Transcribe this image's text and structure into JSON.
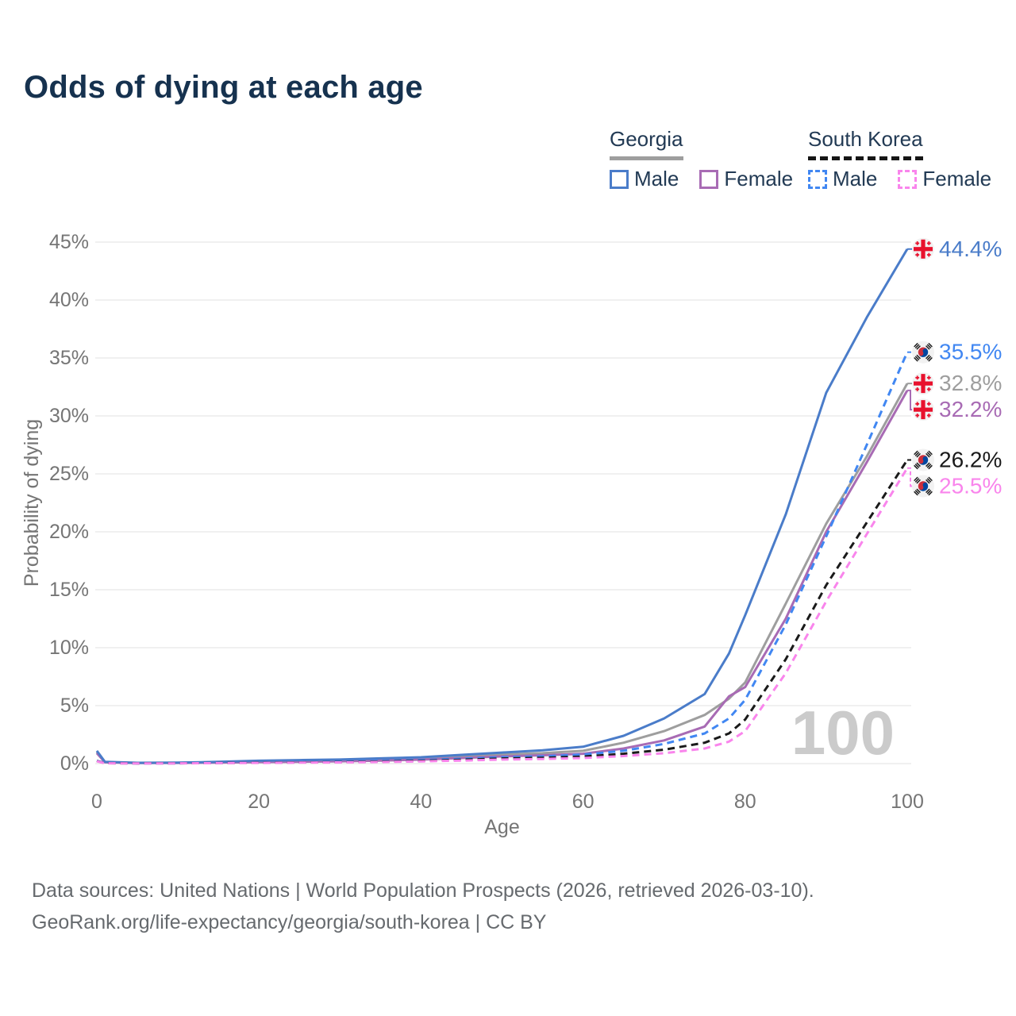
{
  "header": {
    "title": "Odds of dying at each age"
  },
  "legend": {
    "groups": [
      {
        "label": "Georgia",
        "line": {
          "style": "solid",
          "color": "#9e9e9e"
        },
        "items": [
          {
            "label": "Male",
            "color": "#4a7cc9",
            "dash": false
          },
          {
            "label": "Female",
            "color": "#a86bb4",
            "dash": false
          }
        ]
      },
      {
        "label": "South Korea",
        "line": {
          "style": "dashed",
          "color": "#161616"
        },
        "items": [
          {
            "label": "Male",
            "color": "#4187f2",
            "dash": true
          },
          {
            "label": "Female",
            "color": "#f985ec",
            "dash": true
          }
        ]
      }
    ]
  },
  "chart_data": {
    "type": "line",
    "title": "Odds of dying at each age",
    "xlabel": "Age",
    "ylabel": "Probability of dying",
    "xlim": [
      0,
      100
    ],
    "ylim": [
      0,
      45
    ],
    "xticks": [
      0,
      20,
      40,
      60,
      80,
      100
    ],
    "yticks": [
      0,
      5,
      10,
      15,
      20,
      25,
      30,
      35,
      40,
      45
    ],
    "ytick_suffix": "%",
    "grid": "horizontal",
    "legend_position": "top-right",
    "watermark": "100",
    "x": [
      0,
      1,
      5,
      10,
      15,
      20,
      25,
      30,
      35,
      40,
      45,
      50,
      55,
      60,
      65,
      70,
      75,
      78,
      80,
      85,
      90,
      95,
      100
    ],
    "series": [
      {
        "id": "georgia-male",
        "country": "Georgia",
        "flag": "georgia",
        "legend_label": "Male",
        "color": "#4a7cc9",
        "dash": false,
        "end_label": "44.4%",
        "values": [
          1.1,
          0.15,
          0.07,
          0.08,
          0.15,
          0.25,
          0.3,
          0.35,
          0.45,
          0.55,
          0.75,
          0.95,
          1.15,
          1.45,
          2.4,
          3.9,
          6.0,
          9.5,
          12.8,
          21.5,
          32.0,
          38.5,
          44.4
        ]
      },
      {
        "id": "south-korea-male",
        "country": "South Korea",
        "flag": "south-korea",
        "legend_label": "Male",
        "color": "#4187f2",
        "dash": true,
        "end_label": "35.5%",
        "values": [
          0.25,
          0.04,
          0.02,
          0.03,
          0.06,
          0.1,
          0.13,
          0.17,
          0.23,
          0.3,
          0.42,
          0.55,
          0.62,
          0.78,
          1.1,
          1.7,
          2.6,
          3.9,
          5.5,
          12.0,
          19.6,
          27.5,
          35.5
        ]
      },
      {
        "id": "georgia-combined",
        "country": "Georgia",
        "flag": "georgia",
        "legend_label": "",
        "color": "#9e9e9e",
        "dash": false,
        "end_label": "32.8%",
        "values": [
          1.0,
          0.13,
          0.06,
          0.07,
          0.12,
          0.19,
          0.23,
          0.27,
          0.34,
          0.43,
          0.6,
          0.78,
          0.9,
          1.1,
          1.8,
          2.8,
          4.2,
          5.6,
          7.0,
          13.8,
          20.7,
          26.5,
          32.8
        ]
      },
      {
        "id": "georgia-female",
        "country": "Georgia",
        "flag": "georgia",
        "legend_label": "Female",
        "color": "#a86bb4",
        "dash": false,
        "end_label": "32.2%",
        "values": [
          0.9,
          0.11,
          0.05,
          0.06,
          0.09,
          0.13,
          0.16,
          0.2,
          0.26,
          0.34,
          0.48,
          0.62,
          0.72,
          0.85,
          1.3,
          2.0,
          3.2,
          5.8,
          6.6,
          12.5,
          20.0,
          26.0,
          32.2
        ]
      },
      {
        "id": "south-korea-combined",
        "country": "South Korea",
        "flag": "south-korea",
        "legend_label": "",
        "color": "#1a1a1a",
        "dash": true,
        "end_label": "26.2%",
        "values": [
          0.22,
          0.035,
          0.018,
          0.025,
          0.05,
          0.08,
          0.1,
          0.13,
          0.18,
          0.24,
          0.33,
          0.44,
          0.5,
          0.6,
          0.85,
          1.2,
          1.8,
          2.6,
          3.8,
          9.0,
          15.4,
          20.8,
          26.2
        ]
      },
      {
        "id": "south-korea-female",
        "country": "South Korea",
        "flag": "south-korea",
        "legend_label": "Female",
        "color": "#f985ec",
        "dash": true,
        "end_label": "25.5%",
        "values": [
          0.2,
          0.03,
          0.015,
          0.02,
          0.04,
          0.06,
          0.08,
          0.1,
          0.14,
          0.19,
          0.26,
          0.35,
          0.4,
          0.48,
          0.65,
          0.9,
          1.3,
          1.9,
          2.8,
          7.8,
          14.0,
          19.8,
          25.5
        ]
      }
    ]
  },
  "footer": {
    "line1": "Data sources: United Nations | World Population Prospects (2026, retrieved 2026-03-10).",
    "line2": "GeoRank.org/life-expectancy/georgia/south-korea | CC BY"
  }
}
